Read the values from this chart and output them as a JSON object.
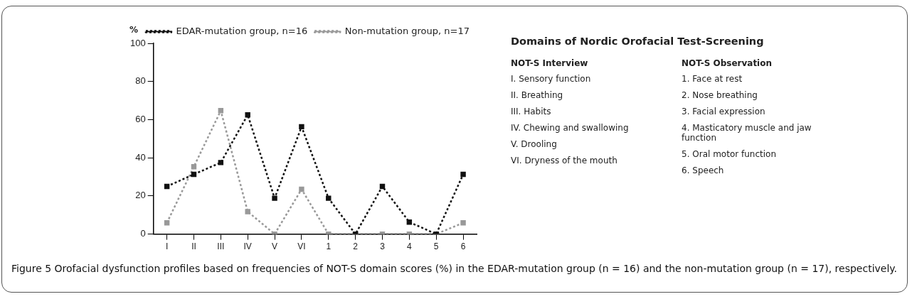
{
  "chart_data": {
    "type": "line",
    "ylabel": "%",
    "categories": [
      "I",
      "II",
      "III",
      "IV",
      "V",
      "VI",
      "1",
      "2",
      "3",
      "4",
      "5",
      "6"
    ],
    "series": [
      {
        "name": "EDAR-mutation group, n=16",
        "color": "#111111",
        "values": [
          25,
          31.3,
          37.5,
          62.5,
          18.8,
          56.3,
          18.8,
          0,
          25,
          6.3,
          0,
          31.3
        ]
      },
      {
        "name": "Non-mutation group, n=17",
        "color": "#999999",
        "values": [
          5.9,
          35.3,
          64.7,
          11.8,
          0,
          23.5,
          0,
          0,
          0,
          0,
          0,
          5.9
        ]
      }
    ],
    "ylim": [
      0,
      100
    ],
    "yticks": [
      0,
      20,
      40,
      60,
      80,
      100
    ],
    "grid": false,
    "legend": "top right",
    "marker": "square",
    "line_style": "dashed",
    "annotations": [
      "Domains of Nordic Orofacial Test-Screening",
      "NOT-S Interview",
      "I.  Sensory function",
      "II. Breathing",
      "III. Habits",
      "IV. Chewing and swallowing",
      "V.  Drooling",
      "VI. Dryness of the mouth",
      "NOT-S Observation",
      "1.  Face at rest",
      "2.  Nose breathing",
      "3.  Facial expression",
      "4.  Masticatory muscle and jaw function",
      "5.  Oral motor function",
      "6.  Speech",
      "Figure 5 Orofacial dysfunction profiles based on frequencies of NOT-S domain scores (%) in the EDAR-mutation group (n = 16) and the non-mutation group (n = 17), respectively."
    ]
  }
}
